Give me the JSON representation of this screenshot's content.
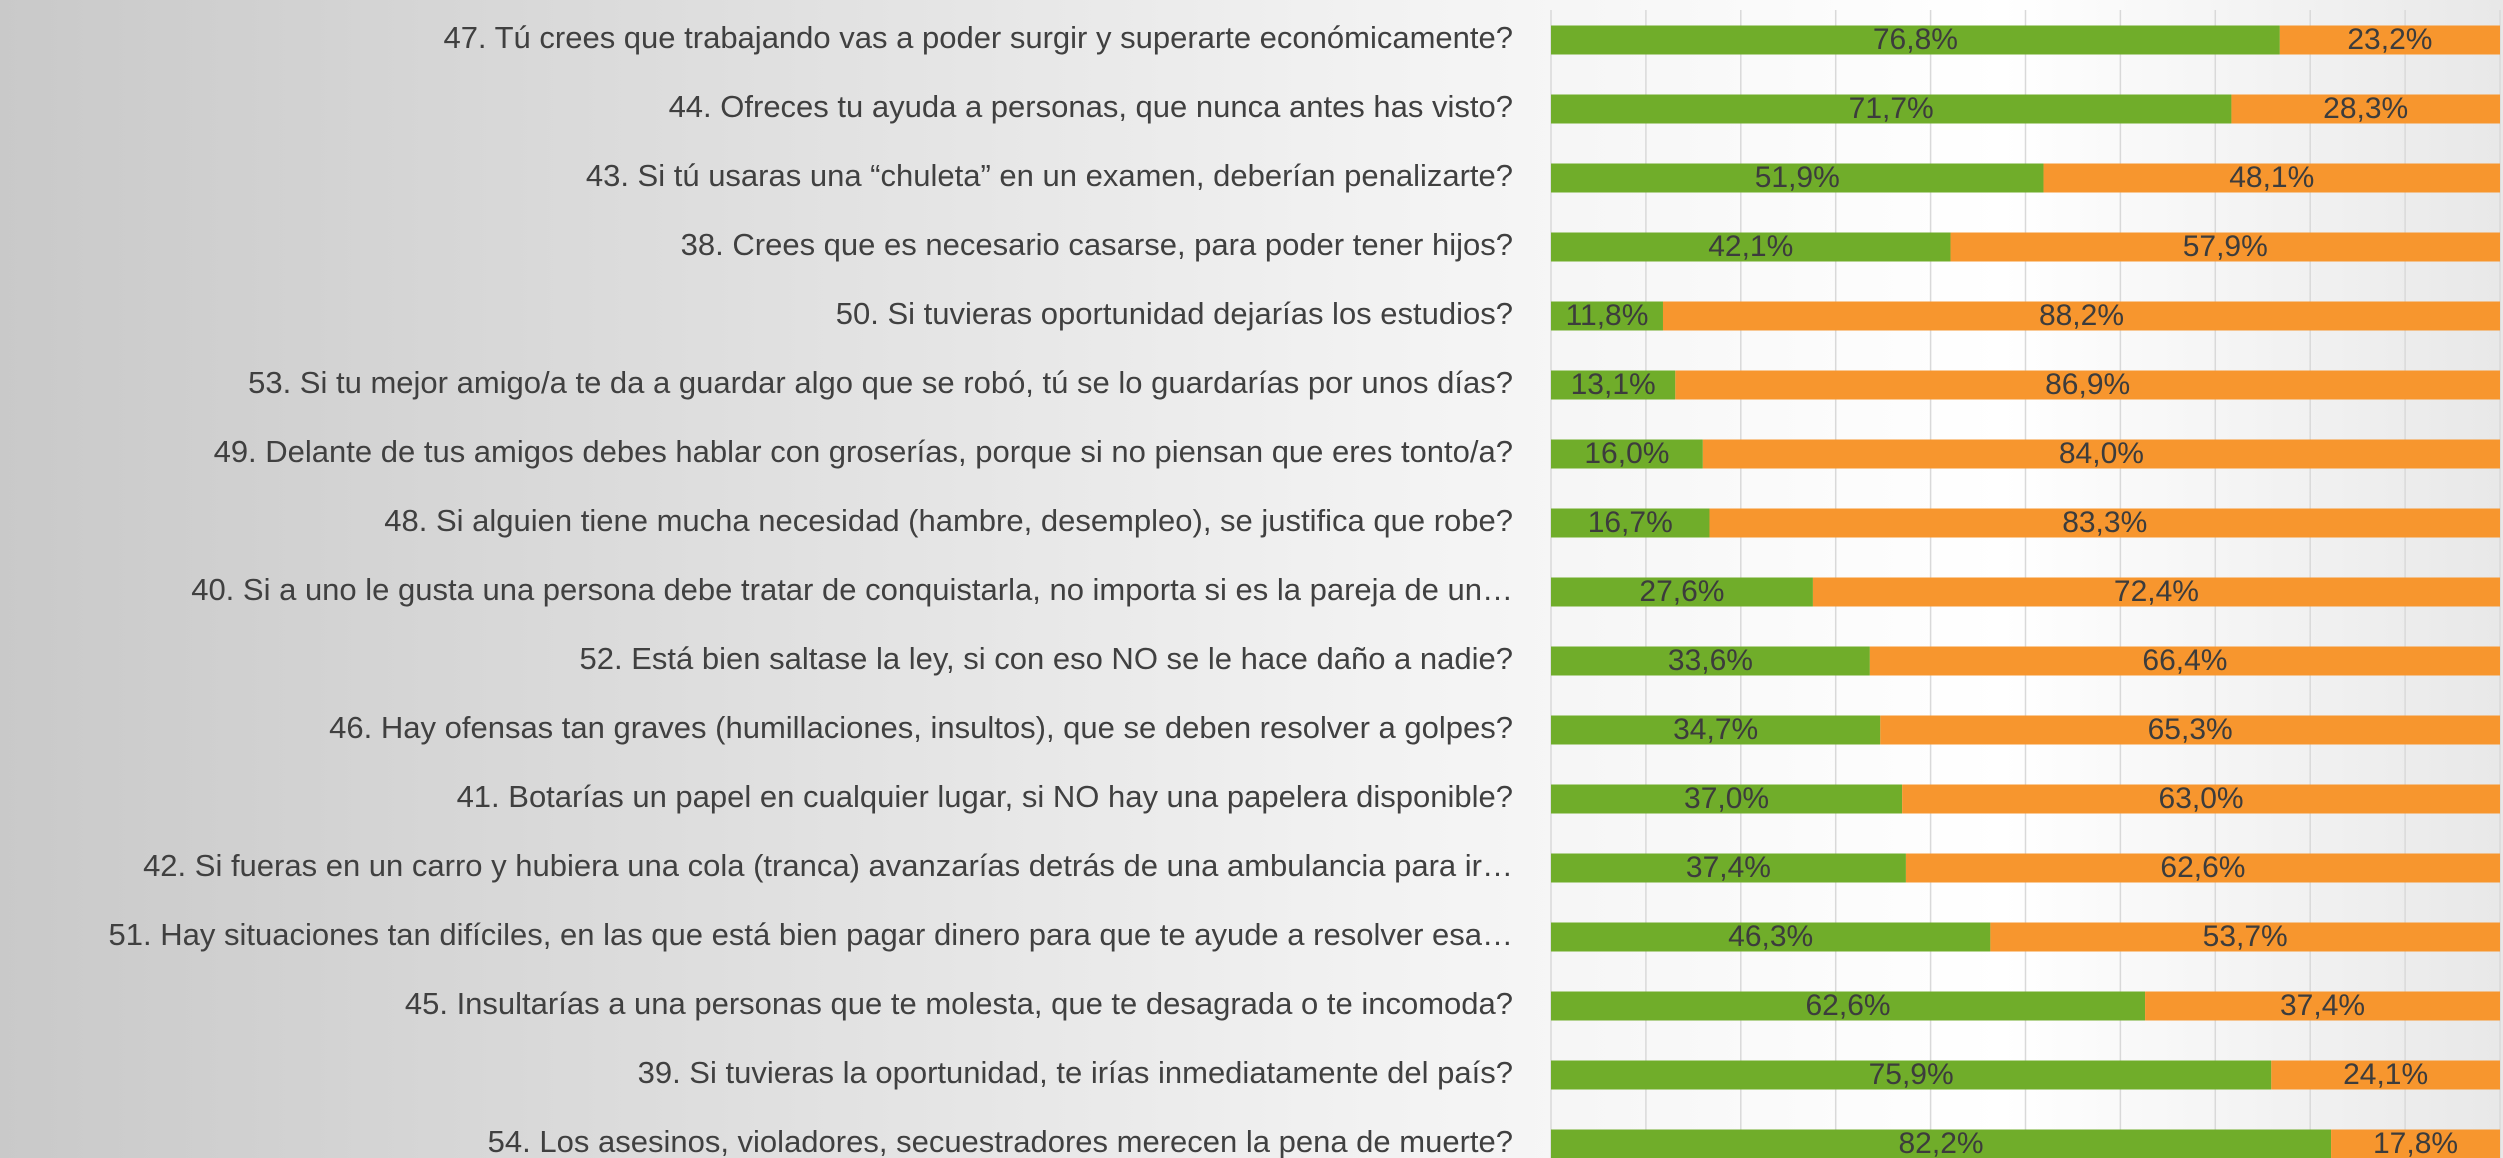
{
  "chart_data": {
    "type": "stacked_bar_horizontal",
    "categories": [
      "47. Tú crees que trabajando vas a poder surgir y superarte económicamente?",
      "44. Ofreces tu ayuda a personas,  que nunca antes has visto?",
      "43. Si tú usaras  una “chuleta” en un examen, deberían penalizarte?",
      "38. Crees que es necesario casarse, para poder tener hijos?",
      "50. Si tuvieras oportunidad dejarías los estudios?",
      "53. Si tu mejor amigo/a te da a guardar algo que se robó, tú se lo guardarías por unos días?",
      "49. Delante de tus amigos debes hablar con groserías, porque si no piensan que eres tonto/a?",
      "48. Si alguien tiene mucha necesidad (hambre, desempleo),  se justifica  que robe?",
      "40. Si a uno le gusta una persona debe tratar de conquistarla, no importa si es la  pareja de un…",
      "52. Está bien saltase la ley, si con eso NO se le hace daño a nadie?",
      "46. Hay ofensas tan graves (humillaciones, insultos), que se deben resolver a golpes?",
      "41. Botarías un papel en cualquier lugar, si NO hay una papelera disponible?",
      "42. Si fueras en un carro y hubiera una cola (tranca) avanzarías detrás de una ambulancia para ir…",
      "51. Hay situaciones tan difíciles, en las que está bien pagar dinero para que te ayude a resolver esa…",
      "45. Insultarías a una personas que te molesta, que te desagrada o te incomoda?",
      "39. Si tuvieras la oportunidad, te irías inmediatamente del país?",
      "54. Los asesinos, violadores, secuestradores merecen la pena de muerte?"
    ],
    "series": [
      {
        "color": "#70ad2a",
        "values": [
          76.8,
          71.7,
          51.9,
          42.1,
          11.8,
          13.1,
          16.0,
          16.7,
          27.6,
          33.6,
          34.7,
          37.0,
          37.4,
          46.3,
          62.6,
          75.9,
          82.2
        ],
        "value_labels": [
          "76,8%",
          "71,7%",
          "51,9%",
          "42,1%",
          "11,8%",
          "13,1%",
          "16,0%",
          "16,7%",
          "27,6%",
          "33,6%",
          "34,7%",
          "37,0%",
          "37,4%",
          "46,3%",
          "62,6%",
          "75,9%",
          "82,2%"
        ]
      },
      {
        "color": "#f7962e",
        "values": [
          23.2,
          28.3,
          48.1,
          57.9,
          88.2,
          86.9,
          84.0,
          83.3,
          72.4,
          66.4,
          65.3,
          63.0,
          62.6,
          53.7,
          37.4,
          24.1,
          17.8
        ],
        "value_labels": [
          "23,2%",
          "28,3%",
          "48,1%",
          "57,9%",
          "88,2%",
          "86,9%",
          "84,0%",
          "83,3%",
          "72,4%",
          "66,4%",
          "65,3%",
          "63,0%",
          "62,6%",
          "53,7%",
          "37,4%",
          "24,1%",
          "17,8%"
        ]
      }
    ],
    "xlim": [
      0,
      100
    ],
    "xticks": [
      0,
      10,
      20,
      30,
      40,
      50,
      60,
      70,
      80,
      90,
      100
    ],
    "grid": true
  }
}
